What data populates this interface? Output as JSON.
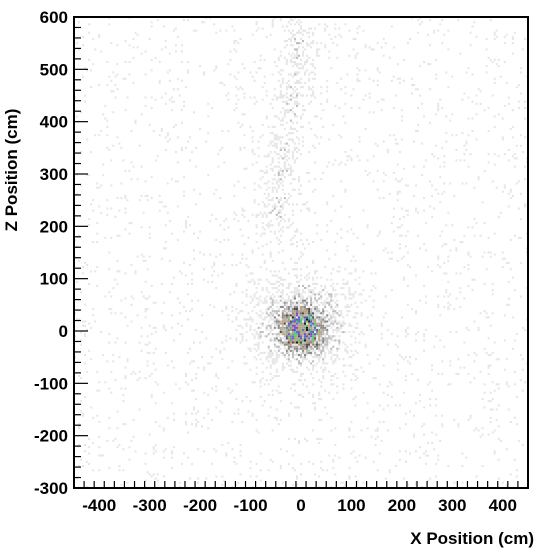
{
  "chart_data": {
    "type": "heatmap",
    "title": "",
    "xlabel": "X Position (cm)",
    "ylabel": "Z Position (cm)",
    "xlim": [
      -450,
      450
    ],
    "ylim": [
      -300,
      600
    ],
    "x_ticks": [
      -400,
      -300,
      -200,
      -100,
      0,
      100,
      200,
      300,
      400
    ],
    "y_ticks": [
      -300,
      -200,
      -100,
      0,
      100,
      200,
      300,
      400,
      500,
      600
    ],
    "grid": false,
    "colormap": [
      "#e6e6e6",
      "#bdbdbd",
      "#8a8a8a",
      "#4d4d4d",
      "#1a1a1a",
      "#b9a486",
      "#5fbf7a",
      "#4a78c8",
      "#7a4ac8"
    ],
    "density_regions": [
      {
        "label": "core",
        "x": 0,
        "z": 0,
        "sx": 28,
        "sz": 26,
        "weight": 1.0
      },
      {
        "label": "halo",
        "x": 0,
        "z": 10,
        "sx": 60,
        "sz": 55,
        "weight": 0.9
      },
      {
        "label": "track",
        "x": -50,
        "z": 230,
        "sx": 22,
        "sz": 35,
        "weight": 0.45
      },
      {
        "label": "track",
        "x": -40,
        "z": 330,
        "sx": 20,
        "sz": 40,
        "weight": 0.4
      },
      {
        "label": "track",
        "x": -20,
        "z": 430,
        "sx": 20,
        "sz": 40,
        "weight": 0.38
      },
      {
        "label": "track",
        "x": -5,
        "z": 540,
        "sx": 22,
        "sz": 45,
        "weight": 0.38
      }
    ]
  }
}
